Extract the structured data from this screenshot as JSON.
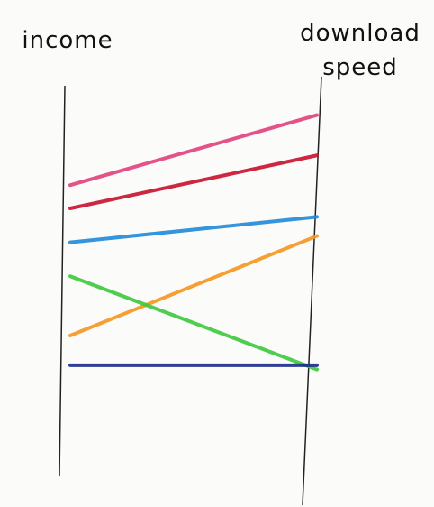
{
  "chart_data": {
    "type": "parallel",
    "categories": [
      "income",
      "download speed"
    ],
    "ylim": [
      0,
      100
    ],
    "series": [
      {
        "color": "#e0407a",
        "values": [
          75.5,
          92
        ]
      },
      {
        "color": "#c8102e",
        "values": [
          70,
          82.5
        ]
      },
      {
        "color": "#1e88d8",
        "values": [
          62,
          68
        ]
      },
      {
        "color": "#f5961e",
        "values": [
          40,
          63.5
        ]
      },
      {
        "color": "#3cc83c",
        "values": [
          54,
          32
        ]
      },
      {
        "color": "#1a2a8a",
        "values": [
          33,
          33
        ]
      }
    ]
  }
}
